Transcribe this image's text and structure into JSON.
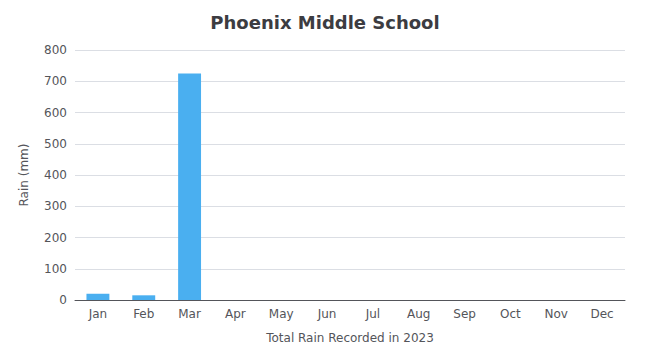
{
  "chart_data": {
    "type": "bar",
    "title": "Phoenix Middle School",
    "xlabel": "Total Rain Recorded in 2023",
    "ylabel": "Rain (mm)",
    "categories": [
      "Jan",
      "Feb",
      "Mar",
      "Apr",
      "May",
      "Jun",
      "Jul",
      "Aug",
      "Sep",
      "Oct",
      "Nov",
      "Dec"
    ],
    "values": [
      20,
      15,
      725,
      0,
      0,
      0,
      0,
      0,
      0,
      0,
      0,
      0
    ],
    "color": "#4aaff0",
    "ylim": [
      0,
      800
    ],
    "yticks": [
      0,
      100,
      200,
      300,
      400,
      500,
      600,
      700,
      800
    ],
    "grid": true
  }
}
